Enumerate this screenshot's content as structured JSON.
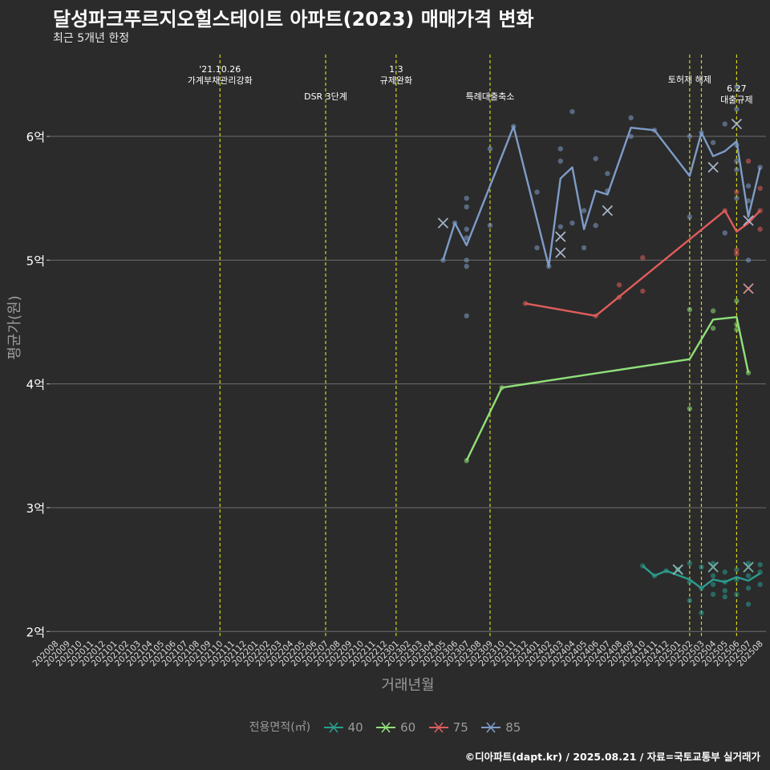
{
  "title": "달성파크푸르지오힐스테이트 아파트(2023) 매매가격 변화",
  "subtitle": "최근 5개년 한정",
  "caption": "©디아파트(dapt.kr) / 2025.08.21 / 자료=국토교통부 실거래가",
  "colors": {
    "background": "#2b2b2b",
    "grid": "#6e6e6e",
    "vline": "#d4d41c",
    "s40": "#2a9d8f",
    "s60": "#90e07a",
    "s75": "#e05c5c",
    "s85": "#7e9cc8"
  },
  "chart_data": {
    "type": "line",
    "xlabel": "거래년월",
    "ylabel": "평균가(원)",
    "ylim": [
      1.95,
      6.7
    ],
    "y_ticks": [
      2,
      3,
      4,
      5,
      6
    ],
    "y_tick_labels": [
      "2억",
      "3억",
      "4억",
      "5억",
      "6억"
    ],
    "x_categories": [
      "202008",
      "202009",
      "202010",
      "202011",
      "202012",
      "202101",
      "202102",
      "202103",
      "202104",
      "202105",
      "202106",
      "202107",
      "202108",
      "202109",
      "202110",
      "202111",
      "202112",
      "202201",
      "202202",
      "202203",
      "202204",
      "202205",
      "202206",
      "202207",
      "202208",
      "202209",
      "202210",
      "202211",
      "202212",
      "202301",
      "202302",
      "202303",
      "202304",
      "202305",
      "202306",
      "202307",
      "202308",
      "202309",
      "202310",
      "202311",
      "202312",
      "202401",
      "202402",
      "202403",
      "202404",
      "202405",
      "202406",
      "202407",
      "202408",
      "202409",
      "202410",
      "202411",
      "202412",
      "202501",
      "202502",
      "202503",
      "202504",
      "202505",
      "202506",
      "202507",
      "202508"
    ],
    "events": [
      {
        "x": "202110",
        "label": "'21.10.26\n가계부채관리강화"
      },
      {
        "x": "202207",
        "label": "DSR 3단계"
      },
      {
        "x": "202301",
        "label": "1.3\n규제완화"
      },
      {
        "x": "202309",
        "label": "특례대출축소"
      },
      {
        "x": "202502",
        "label": "토허제 해제"
      },
      {
        "x": "202503",
        "label": ""
      },
      {
        "x": "202506",
        "label": "6.27\n대출규제"
      }
    ],
    "legend_title": "전용면적(㎡)",
    "series": [
      {
        "name": "40",
        "color": "#2a9d8f",
        "line": [
          [
            "202410",
            2.53
          ],
          [
            "202411",
            2.45
          ],
          [
            "202412",
            2.49
          ],
          [
            "202502",
            2.42
          ],
          [
            "202503",
            2.35
          ],
          [
            "202504",
            2.42
          ],
          [
            "202505",
            2.4
          ],
          [
            "202506",
            2.44
          ],
          [
            "202507",
            2.41
          ],
          [
            "202508",
            2.47
          ]
        ],
        "points": [
          [
            "202410",
            2.53
          ],
          [
            "202411",
            2.45
          ],
          [
            "202412",
            2.49
          ],
          [
            "202501",
            2.5
          ],
          [
            "202502",
            2.25
          ],
          [
            "202502",
            2.4
          ],
          [
            "202502",
            2.55
          ],
          [
            "202503",
            2.15
          ],
          [
            "202503",
            2.35
          ],
          [
            "202503",
            2.52
          ],
          [
            "202504",
            2.3
          ],
          [
            "202504",
            2.38
          ],
          [
            "202504",
            2.45
          ],
          [
            "202504",
            2.55
          ],
          [
            "202505",
            2.28
          ],
          [
            "202505",
            2.33
          ],
          [
            "202505",
            2.4
          ],
          [
            "202505",
            2.48
          ],
          [
            "202506",
            2.3
          ],
          [
            "202506",
            2.42
          ],
          [
            "202506",
            2.5
          ],
          [
            "202507",
            2.22
          ],
          [
            "202507",
            2.35
          ],
          [
            "202507",
            2.45
          ],
          [
            "202507",
            2.55
          ],
          [
            "202508",
            2.38
          ],
          [
            "202508",
            2.48
          ],
          [
            "202508",
            2.54
          ]
        ],
        "crosses": [
          [
            "202501",
            2.5
          ],
          [
            "202504",
            2.52
          ],
          [
            "202507",
            2.52
          ]
        ]
      },
      {
        "name": "60",
        "color": "#90e07a",
        "line": [
          [
            "202307",
            3.38
          ],
          [
            "202310",
            3.97
          ],
          [
            "202502",
            4.2
          ],
          [
            "202504",
            4.52
          ],
          [
            "202506",
            4.54
          ],
          [
            "202507",
            4.09
          ]
        ],
        "points": [
          [
            "202307",
            3.38
          ],
          [
            "202310",
            3.97
          ],
          [
            "202502",
            3.8
          ],
          [
            "202502",
            4.6
          ],
          [
            "202504",
            4.45
          ],
          [
            "202504",
            4.59
          ],
          [
            "202506",
            4.44
          ],
          [
            "202506",
            4.48
          ],
          [
            "202506",
            4.67
          ],
          [
            "202507",
            4.09
          ]
        ],
        "crosses": []
      },
      {
        "name": "75",
        "color": "#e05c5c",
        "line": [
          [
            "202312",
            4.65
          ],
          [
            "202406",
            4.55
          ],
          [
            "202505",
            5.4
          ],
          [
            "202506",
            5.23
          ],
          [
            "202507",
            5.3
          ],
          [
            "202508",
            5.4
          ]
        ],
        "points": [
          [
            "202312",
            4.65
          ],
          [
            "202406",
            4.55
          ],
          [
            "202408",
            4.7
          ],
          [
            "202408",
            4.8
          ],
          [
            "202410",
            4.75
          ],
          [
            "202410",
            5.02
          ],
          [
            "202505",
            5.4
          ],
          [
            "202506",
            5.05
          ],
          [
            "202506",
            5.08
          ],
          [
            "202506",
            5.55
          ],
          [
            "202507",
            5.8
          ],
          [
            "202508",
            5.25
          ],
          [
            "202508",
            5.4
          ],
          [
            "202508",
            5.58
          ]
        ],
        "crosses": [
          [
            "202507",
            4.77
          ]
        ]
      },
      {
        "name": "85",
        "color": "#7e9cc8",
        "line": [
          [
            "202305",
            5.0
          ],
          [
            "202306",
            5.3
          ],
          [
            "202307",
            5.12
          ],
          [
            "202311",
            6.08
          ],
          [
            "202402",
            4.95
          ],
          [
            "202403",
            5.66
          ],
          [
            "202404",
            5.75
          ],
          [
            "202405",
            5.25
          ],
          [
            "202406",
            5.56
          ],
          [
            "202407",
            5.53
          ],
          [
            "202409",
            6.07
          ],
          [
            "202411",
            6.05
          ],
          [
            "202502",
            5.68
          ],
          [
            "202503",
            6.03
          ],
          [
            "202504",
            5.84
          ],
          [
            "202505",
            5.88
          ],
          [
            "202506",
            5.96
          ],
          [
            "202507",
            5.35
          ],
          [
            "202508",
            5.75
          ]
        ],
        "points": [
          [
            "202305",
            5.0
          ],
          [
            "202306",
            5.3
          ],
          [
            "202307",
            4.55
          ],
          [
            "202307",
            4.95
          ],
          [
            "202307",
            5.0
          ],
          [
            "202307",
            5.18
          ],
          [
            "202307",
            5.25
          ],
          [
            "202307",
            5.43
          ],
          [
            "202307",
            5.5
          ],
          [
            "202309",
            5.28
          ],
          [
            "202309",
            5.9
          ],
          [
            "202311",
            6.08
          ],
          [
            "202401",
            5.1
          ],
          [
            "202401",
            5.55
          ],
          [
            "202402",
            4.95
          ],
          [
            "202403",
            5.27
          ],
          [
            "202403",
            5.8
          ],
          [
            "202403",
            5.9
          ],
          [
            "202404",
            5.3
          ],
          [
            "202404",
            6.2
          ],
          [
            "202405",
            5.1
          ],
          [
            "202405",
            5.4
          ],
          [
            "202406",
            5.28
          ],
          [
            "202406",
            5.82
          ],
          [
            "202407",
            5.56
          ],
          [
            "202407",
            5.7
          ],
          [
            "202409",
            6.0
          ],
          [
            "202409",
            6.15
          ],
          [
            "202411",
            6.05
          ],
          [
            "202502",
            5.35
          ],
          [
            "202502",
            6.0
          ],
          [
            "202503",
            6.03
          ],
          [
            "202504",
            5.95
          ],
          [
            "202505",
            5.22
          ],
          [
            "202505",
            6.1
          ],
          [
            "202506",
            5.5
          ],
          [
            "202506",
            5.73
          ],
          [
            "202506",
            5.8
          ],
          [
            "202506",
            5.93
          ],
          [
            "202506",
            6.22
          ],
          [
            "202506",
            6.4
          ],
          [
            "202507",
            5.0
          ],
          [
            "202507",
            5.48
          ],
          [
            "202507",
            5.6
          ],
          [
            "202508",
            5.75
          ]
        ],
        "crosses": [
          [
            "202305",
            5.3
          ],
          [
            "202403",
            5.06
          ],
          [
            "202403",
            5.19
          ],
          [
            "202407",
            5.4
          ],
          [
            "202504",
            5.75
          ],
          [
            "202506",
            6.1
          ],
          [
            "202507",
            5.32
          ]
        ]
      }
    ]
  }
}
